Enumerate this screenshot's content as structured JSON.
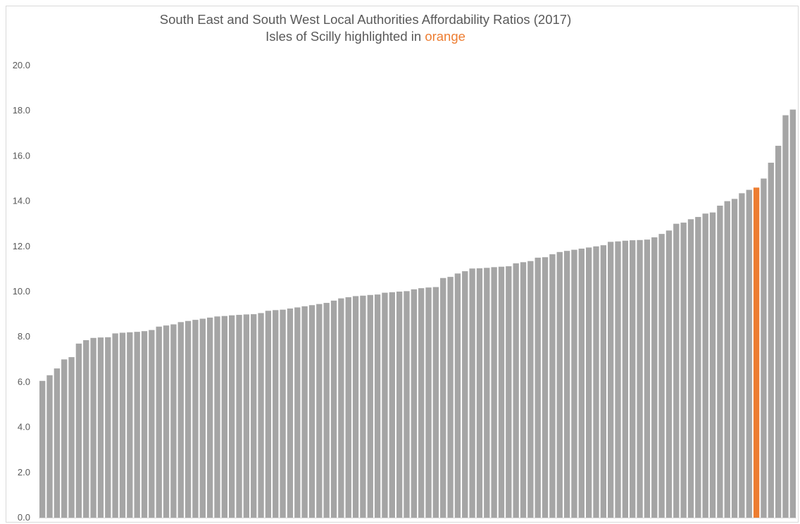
{
  "colors": {
    "bar": "#a5a5a5",
    "highlight": "#ed7d31",
    "text": "#595959",
    "axis": "#d9d9d9"
  },
  "chart_data": {
    "type": "bar",
    "title": "South East and South West Local Authorities Affordability Ratios (2017)",
    "subtitle_prefix": "Isles of Scilly highlighted in ",
    "subtitle_highlight": "orange",
    "xlabel": "",
    "ylabel": "",
    "ylim": [
      0,
      20
    ],
    "yticks": [
      "0.0",
      "2.0",
      "4.0",
      "6.0",
      "8.0",
      "10.0",
      "12.0",
      "14.0",
      "16.0",
      "18.0",
      "20.0"
    ],
    "grid": false,
    "legend": "none",
    "highlight_index": 98,
    "values": [
      6.05,
      6.3,
      6.6,
      7.0,
      7.1,
      7.7,
      7.85,
      7.95,
      7.97,
      7.98,
      8.15,
      8.18,
      8.2,
      8.22,
      8.25,
      8.3,
      8.45,
      8.5,
      8.55,
      8.65,
      8.7,
      8.75,
      8.8,
      8.85,
      8.9,
      8.92,
      8.95,
      8.97,
      8.99,
      9.0,
      9.05,
      9.15,
      9.18,
      9.2,
      9.25,
      9.3,
      9.35,
      9.4,
      9.45,
      9.5,
      9.6,
      9.7,
      9.75,
      9.8,
      9.82,
      9.85,
      9.87,
      9.95,
      9.97,
      10.0,
      10.02,
      10.1,
      10.15,
      10.18,
      10.2,
      10.6,
      10.65,
      10.8,
      10.9,
      11.02,
      11.03,
      11.05,
      11.08,
      11.1,
      11.12,
      11.25,
      11.3,
      11.35,
      11.5,
      11.52,
      11.65,
      11.75,
      11.8,
      11.85,
      11.9,
      11.95,
      12.0,
      12.05,
      12.2,
      12.22,
      12.25,
      12.27,
      12.28,
      12.3,
      12.4,
      12.55,
      12.7,
      13.0,
      13.05,
      13.2,
      13.3,
      13.45,
      13.5,
      13.8,
      14.0,
      14.1,
      14.35,
      14.5,
      14.6,
      15.0,
      15.7,
      16.45,
      17.8,
      18.05
    ]
  }
}
